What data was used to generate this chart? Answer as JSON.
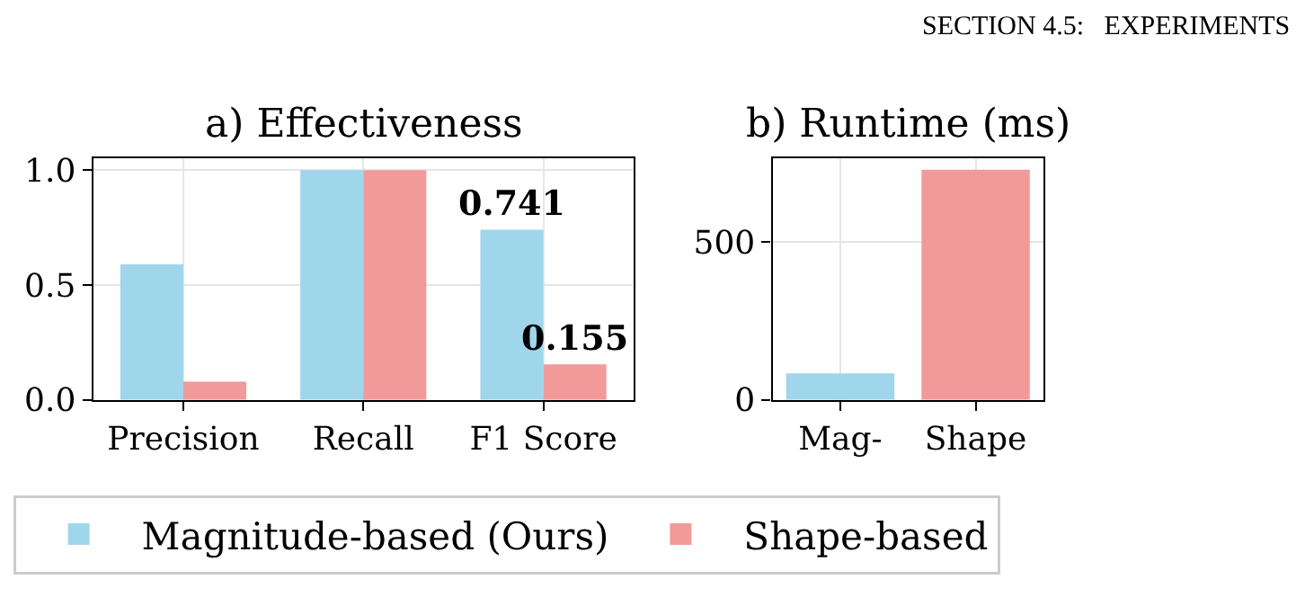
{
  "chart_data": [
    {
      "type": "bar",
      "title": "a) Effectiveness",
      "categories": [
        "Precision",
        "Recall",
        "F1 Score"
      ],
      "series": [
        {
          "name": "Magnitude-based (Ours)",
          "color": "#a0d6ec",
          "values": [
            0.59,
            1.0,
            0.741
          ],
          "value_labels": [
            null,
            null,
            "0.741"
          ]
        },
        {
          "name": "Shape-based",
          "color": "#f29a9a",
          "values": [
            0.08,
            1.0,
            0.155
          ],
          "value_labels": [
            null,
            null,
            "0.155"
          ]
        }
      ],
      "ylim": [
        0,
        1.05
      ],
      "yticks": [
        {
          "value": 0,
          "label": "0.0"
        },
        0.5,
        {
          "value": 1,
          "label": "1.0"
        }
      ],
      "grid": true,
      "legend": "bottom",
      "annotations": [
        "SECTION 4.5:   EXPERIMENTS"
      ]
    },
    {
      "type": "bar",
      "title": "b) Runtime (ms)",
      "categories": [
        "Mag-",
        "Shape"
      ],
      "values": [
        84,
        730
      ],
      "colors": [
        "#a0d6ec",
        "#f29a9a"
      ],
      "ylim": [
        0,
        765
      ],
      "yticks": [
        0,
        500
      ],
      "grid": true
    }
  ]
}
